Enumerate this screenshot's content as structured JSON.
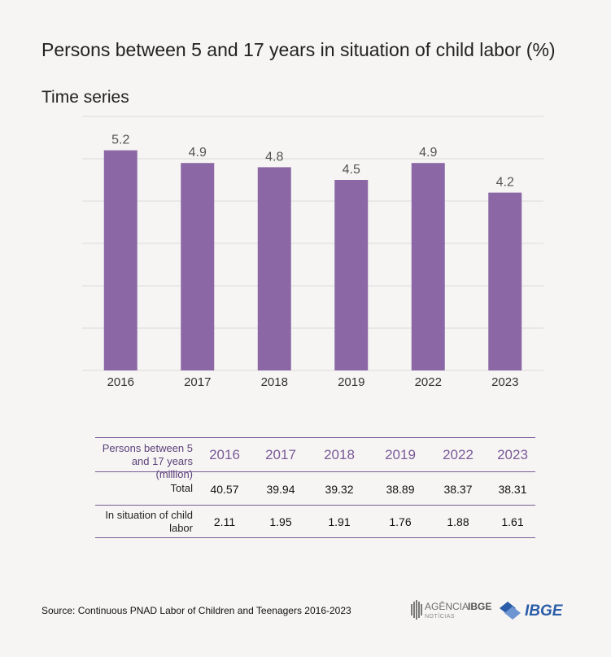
{
  "title": "Persons between 5 and 17 years in situation of child labor (%)",
  "subtitle": "Time series",
  "chart_data": {
    "type": "bar",
    "categories": [
      "2016",
      "2017",
      "2018",
      "2019",
      "2022",
      "2023"
    ],
    "values": [
      5.2,
      4.9,
      4.8,
      4.5,
      4.9,
      4.2
    ],
    "value_labels": [
      "5.2",
      "4.9",
      "4.8",
      "4.5",
      "4.9",
      "4.2"
    ],
    "ylim": [
      0,
      6
    ],
    "grid": true,
    "bar_color": "#8b68a5"
  },
  "table": {
    "header_label": "Persons between 5 and 17 years (million)",
    "years": [
      "2016",
      "2017",
      "2018",
      "2019",
      "2022",
      "2023"
    ],
    "total_label": "Total",
    "total": [
      "40.57",
      "39.94",
      "39.32",
      "38.89",
      "38.37",
      "38.31"
    ],
    "child_label": "In situation of child labor",
    "child": [
      "2.11",
      "1.95",
      "1.91",
      "1.76",
      "1.88",
      "1.61"
    ]
  },
  "source": "Source: Continuous PNAD Labor of Children and Teenagers 2016-2023",
  "logos": {
    "agencia_brand": "AGÊNCIA",
    "agencia_ibge": "IBGE",
    "agencia_sub": "NOTÍCIAS",
    "ibge": "IBGE"
  },
  "colors": {
    "accent": "#8b68a5",
    "rule": "#7a5a98",
    "background": "#f6f5f3",
    "ibge_blue": "#2b5ca8"
  }
}
